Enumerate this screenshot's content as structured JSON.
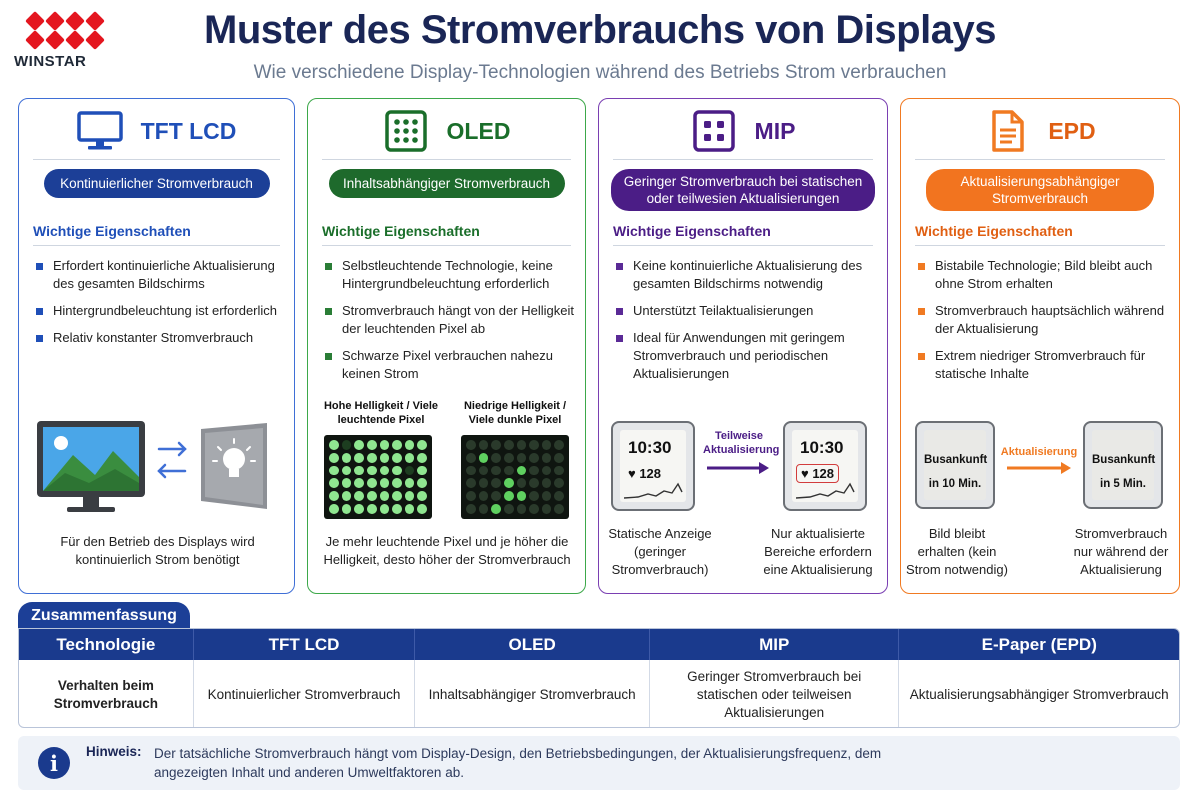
{
  "brand": {
    "name": "WINSTAR"
  },
  "header": {
    "title": "Muster des Stromverbrauchs von Displays",
    "subtitle": "Wie verschiedene Display-Technologien während des Betriebs Strom verbrauchen"
  },
  "colors": {
    "tft": "#1f4fb8",
    "oled": "#1a6e2a",
    "mip": "#4b1d86",
    "epd": "#e05f12",
    "navy": "#1a3a8d"
  },
  "cards": {
    "tft": {
      "icon": "monitor-icon",
      "title": "TFT LCD",
      "pill": "Kontinuierlicher Stromverbrauch",
      "section": "Wichtige Eigenschaften",
      "bullets": [
        "Erfordert kontinuierliche Aktualisierung des gesamten Bildschirms",
        "Hintergrundbeleuchtung ist erforderlich",
        "Relativ konstanter Stromverbrauch"
      ],
      "caption": "Für den Betrieb des Displays wird kontinuierlich Strom benötigt"
    },
    "oled": {
      "icon": "pixel-grid-icon",
      "title": "OLED",
      "pill": "Inhaltsabhängiger Stromverbrauch",
      "section": "Wichtige Eigenschaften",
      "bullets": [
        "Selbstleuchtende Technologie, keine Hintergrundbeleuchtung erforderlich",
        "Stromverbrauch hängt von der Helligkeit der leuchtenden Pixel ab",
        "Schwarze Pixel verbrauchen nahezu keinen Strom"
      ],
      "grid_high_label": "Hohe Helligkeit / Viele leuchtende Pixel",
      "grid_low_label": "Niedrige Helligkeit / Viele dunkle Pixel",
      "caption": "Je mehr leuchtende Pixel und je höher die Helligkeit, desto höher der Stromverbrauch"
    },
    "mip": {
      "icon": "four-dot-icon",
      "title": "MIP",
      "pill": "Geringer Stromverbrauch bei statischen oder teilwesien Aktualisierungen",
      "section": "Wichtige Eigenschaften",
      "bullets": [
        "Keine kontinuierliche Aktualisierung des gesamten Bildschirms notwendig",
        "Unterstützt Teilaktualisierungen",
        "Ideal für Anwendungen mit geringem Stromverbrauch und periodischen Aktualisierungen"
      ],
      "device_time": "10:30",
      "device_hr": "♥ 128",
      "arrow_label": "Teilweise Aktualisierung",
      "caption_left": "Statische Anzeige (geringer Stromverbrauch)",
      "caption_right": "Nur aktualisierte Bereiche erfordern eine Aktualisierung"
    },
    "epd": {
      "icon": "document-icon",
      "title": "EPD",
      "pill": "Aktualisierungsabhängiger Stromverbrauch",
      "section": "Wichtige Eigenschaften",
      "bullets": [
        "Bistabile Technologie; Bild bleibt auch ohne Strom erhalten",
        "Stromverbrauch hauptsächlich während der Aktualisierung",
        "Extrem niedriger Stromverbrauch für statische Inhalte"
      ],
      "device_left_line1": "Busankunft",
      "device_left_line2": "in 10 Min.",
      "device_right_line1": "Busankunft",
      "device_right_line2": "in 5 Min.",
      "arrow_label": "Aktualisierung",
      "caption_left": "Bild bleibt erhalten (kein Strom notwendig)",
      "caption_right": "Stromverbrauch nur während der Aktualisierung"
    }
  },
  "summary": {
    "label": "Zusammenfassung",
    "headers": [
      "Technologie",
      "TFT LCD",
      "OLED",
      "MIP",
      "E-Paper (EPD)"
    ],
    "row": [
      "Verhalten beim Stromverbrauch",
      "Kontinuierlicher Stromverbrauch",
      "Inhaltsabhängiger Stromverbrauch",
      "Geringer Stromverbrauch bei statischen oder teilweisen Aktualisierungen",
      "Aktualisierungsabhängiger Stromverbrauch"
    ]
  },
  "note": {
    "label": "Hinweis:",
    "text": "Der tatsächliche Stromverbrauch hängt vom Display-Design, den Betriebsbedingungen, der Aktualisierungsfrequenz, dem angezeigten Inhalt und anderen Umweltfaktoren ab."
  }
}
